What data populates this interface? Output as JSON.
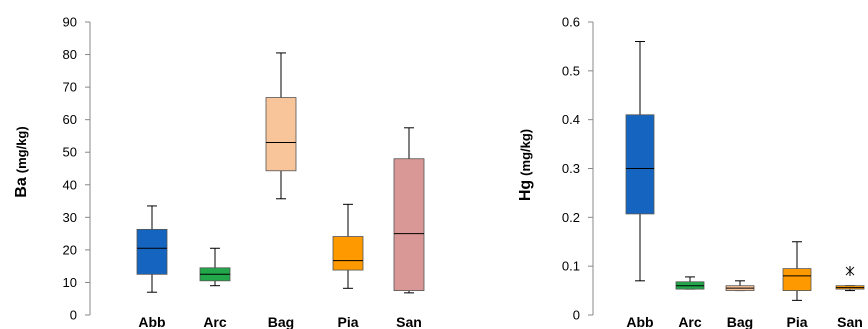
{
  "chart_data": [
    {
      "type": "box",
      "ylabel_main": "Ba",
      "ylabel_unit": "(mg/kg)",
      "ylim": [
        0,
        90
      ],
      "yticks": [
        0,
        10,
        20,
        30,
        40,
        50,
        60,
        70,
        80,
        90
      ],
      "categories": [
        "Abb",
        "Arc",
        "Bag",
        "Pia",
        "San"
      ],
      "boxes": [
        {
          "category": "Abb",
          "min": 7,
          "q1": 12.5,
          "median": 20.5,
          "q3": 26.3,
          "max": 33.5,
          "color": "#1565C0",
          "outliers": []
        },
        {
          "category": "Arc",
          "min": 9,
          "q1": 10.5,
          "median": 12.5,
          "q3": 14.5,
          "max": 20.5,
          "color": "#22A84A",
          "outliers": []
        },
        {
          "category": "Bag",
          "min": 35.7,
          "q1": 44.3,
          "median": 53,
          "q3": 66.8,
          "max": 80.5,
          "color": "#F8C49A",
          "outliers": []
        },
        {
          "category": "Pia",
          "min": 8.2,
          "q1": 13.8,
          "median": 16.7,
          "q3": 24.1,
          "max": 34,
          "color": "#FF9900",
          "outliers": []
        },
        {
          "category": "San",
          "min": 6.8,
          "q1": 7.5,
          "median": 25,
          "q3": 48,
          "max": 57.5,
          "color": "#D99795",
          "outliers": []
        }
      ]
    },
    {
      "type": "box",
      "ylabel_main": "Hg",
      "ylabel_unit": "(mg/kg)",
      "ylim": [
        0,
        0.6
      ],
      "yticks": [
        "0",
        "0.1",
        "0.2",
        "0.3",
        "0.4",
        "0.5",
        "0.6"
      ],
      "categories": [
        "Abb",
        "Arc",
        "Bag",
        "Pia",
        "San"
      ],
      "boxes": [
        {
          "category": "Abb",
          "min": 0.07,
          "q1": 0.207,
          "median": 0.3,
          "q3": 0.41,
          "max": 0.56,
          "color": "#1565C0",
          "outliers": []
        },
        {
          "category": "Arc",
          "min": 0.053,
          "q1": 0.053,
          "median": 0.06,
          "q3": 0.068,
          "max": 0.078,
          "color": "#22A84A",
          "outliers": []
        },
        {
          "category": "Bag",
          "min": 0.05,
          "q1": 0.05,
          "median": 0.055,
          "q3": 0.06,
          "max": 0.07,
          "color": "#F8C49A",
          "outliers": []
        },
        {
          "category": "Pia",
          "min": 0.03,
          "q1": 0.05,
          "median": 0.08,
          "q3": 0.095,
          "max": 0.15,
          "color": "#FF9900",
          "outliers": []
        },
        {
          "category": "San",
          "min": 0.05,
          "q1": 0.053,
          "median": 0.056,
          "q3": 0.06,
          "max": 0.06,
          "color": "#FF9900",
          "outliers": [
            0.09
          ]
        }
      ]
    }
  ]
}
